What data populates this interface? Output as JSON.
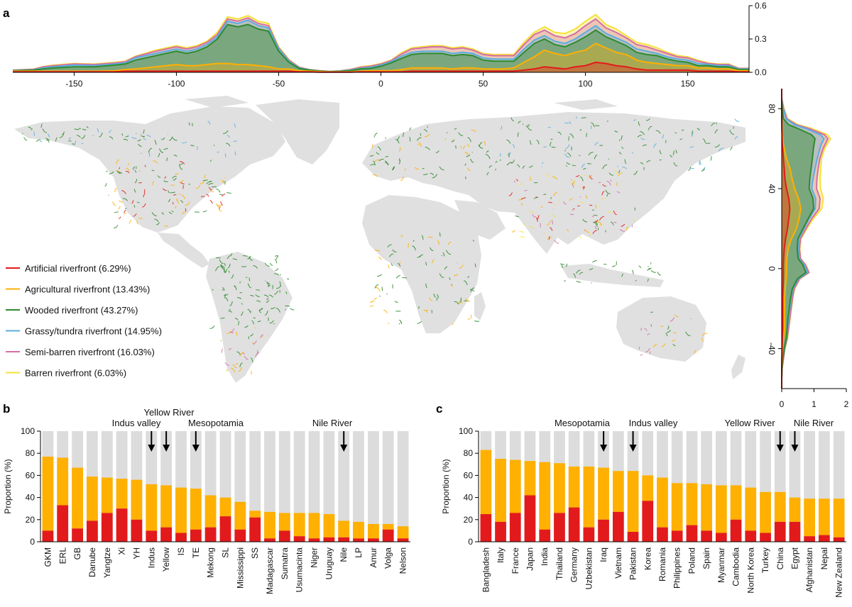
{
  "panel_labels": {
    "a": "a",
    "b": "b",
    "c": "c"
  },
  "colors": {
    "artificial": "#e31a1c",
    "agricultural": "#ffb000",
    "wooded": "#2e8b2e",
    "grassy": "#5aaee0",
    "semibarren": "#d46fa6",
    "barren": "#f5e13a",
    "remainder": "#dcdcdc",
    "land": "#e0e0e0"
  },
  "legend": [
    {
      "key": "artificial",
      "label": "Artificial riverfront (6.29%)"
    },
    {
      "key": "agricultural",
      "label": "Agricultural riverfront (13.43%)"
    },
    {
      "key": "wooded",
      "label": "Wooded riverfront (43.27%)"
    },
    {
      "key": "grassy",
      "label": "Grassy/tundra riverfront (14.95%)"
    },
    {
      "key": "semibarren",
      "label": "Semi-barren riverfront (16.03%)"
    },
    {
      "key": "barren",
      "label": "Barren riverfront (6.03%)"
    }
  ],
  "chart_data": [
    {
      "id": "a-longitude",
      "type": "area",
      "xlim": [
        -180,
        180
      ],
      "ylim": [
        0,
        0.6
      ],
      "x_ticks": [
        -150,
        -100,
        -50,
        0,
        50,
        100,
        150
      ],
      "y_ticks": [
        "0.0",
        "0.3",
        "0.6"
      ],
      "x": [
        -180,
        -170,
        -165,
        -160,
        -150,
        -140,
        -130,
        -125,
        -120,
        -110,
        -100,
        -95,
        -90,
        -85,
        -80,
        -75,
        -70,
        -65,
        -60,
        -55,
        -50,
        -45,
        -40,
        -35,
        -30,
        -25,
        -20,
        -15,
        -10,
        -5,
        0,
        5,
        10,
        15,
        20,
        25,
        30,
        35,
        40,
        45,
        50,
        55,
        60,
        65,
        70,
        75,
        80,
        85,
        90,
        95,
        100,
        105,
        110,
        115,
        120,
        125,
        130,
        135,
        140,
        145,
        150,
        155,
        160,
        165,
        170,
        175,
        180
      ],
      "series": [
        {
          "key": "artificial",
          "values": [
            0.005,
            0.005,
            0.005,
            0.005,
            0.005,
            0.005,
            0.005,
            0.01,
            0.01,
            0.01,
            0.01,
            0.01,
            0.01,
            0.01,
            0.01,
            0.01,
            0.01,
            0.01,
            0.01,
            0.01,
            0.01,
            0.01,
            0.005,
            0.005,
            0.002,
            0.002,
            0.002,
            0.002,
            0.005,
            0.005,
            0.005,
            0.005,
            0.005,
            0.01,
            0.01,
            0.01,
            0.01,
            0.01,
            0.01,
            0.01,
            0.01,
            0.01,
            0.01,
            0.01,
            0.02,
            0.03,
            0.05,
            0.04,
            0.03,
            0.05,
            0.06,
            0.09,
            0.08,
            0.06,
            0.05,
            0.03,
            0.02,
            0.02,
            0.02,
            0.02,
            0.02,
            0.01,
            0.01,
            0.01,
            0.01,
            0.005,
            0.005
          ]
        },
        {
          "key": "agricultural",
          "values": [
            0.005,
            0.005,
            0.005,
            0.005,
            0.005,
            0.005,
            0.01,
            0.015,
            0.02,
            0.04,
            0.06,
            0.05,
            0.05,
            0.06,
            0.07,
            0.07,
            0.06,
            0.06,
            0.05,
            0.04,
            0.02,
            0.02,
            0.01,
            0.005,
            0.005,
            0.002,
            0.002,
            0.003,
            0.005,
            0.01,
            0.01,
            0.01,
            0.02,
            0.03,
            0.03,
            0.03,
            0.03,
            0.02,
            0.03,
            0.03,
            0.02,
            0.02,
            0.02,
            0.03,
            0.07,
            0.11,
            0.15,
            0.13,
            0.12,
            0.13,
            0.14,
            0.17,
            0.14,
            0.12,
            0.11,
            0.08,
            0.07,
            0.06,
            0.05,
            0.04,
            0.04,
            0.03,
            0.03,
            0.02,
            0.02,
            0.01,
            0.01
          ]
        },
        {
          "key": "wooded",
          "values": [
            0.005,
            0.01,
            0.02,
            0.03,
            0.04,
            0.04,
            0.05,
            0.05,
            0.08,
            0.1,
            0.12,
            0.11,
            0.13,
            0.16,
            0.22,
            0.35,
            0.34,
            0.36,
            0.33,
            0.32,
            0.16,
            0.06,
            0.02,
            0.01,
            0.005,
            0.002,
            0.005,
            0.01,
            0.02,
            0.02,
            0.04,
            0.07,
            0.1,
            0.12,
            0.13,
            0.13,
            0.13,
            0.12,
            0.12,
            0.11,
            0.08,
            0.07,
            0.07,
            0.06,
            0.09,
            0.12,
            0.1,
            0.08,
            0.08,
            0.09,
            0.12,
            0.12,
            0.1,
            0.1,
            0.08,
            0.07,
            0.07,
            0.07,
            0.05,
            0.04,
            0.03,
            0.02,
            0.02,
            0.02,
            0.02,
            0.01,
            0.01
          ]
        },
        {
          "key": "grassy",
          "values": [
            0.002,
            0.002,
            0.01,
            0.01,
            0.015,
            0.01,
            0.01,
            0.01,
            0.02,
            0.02,
            0.02,
            0.02,
            0.02,
            0.02,
            0.02,
            0.03,
            0.03,
            0.04,
            0.03,
            0.03,
            0.02,
            0.01,
            0.005,
            0.002,
            0.001,
            0.001,
            0.002,
            0.005,
            0.005,
            0.01,
            0.01,
            0.01,
            0.02,
            0.02,
            0.02,
            0.02,
            0.02,
            0.02,
            0.02,
            0.02,
            0.02,
            0.02,
            0.02,
            0.02,
            0.03,
            0.03,
            0.03,
            0.03,
            0.03,
            0.03,
            0.04,
            0.04,
            0.03,
            0.03,
            0.03,
            0.03,
            0.03,
            0.02,
            0.02,
            0.02,
            0.02,
            0.02,
            0.01,
            0.01,
            0.01,
            0.005,
            0.005
          ]
        },
        {
          "key": "semibarren",
          "values": [
            0.002,
            0.005,
            0.01,
            0.01,
            0.01,
            0.01,
            0.01,
            0.01,
            0.01,
            0.02,
            0.02,
            0.02,
            0.02,
            0.02,
            0.02,
            0.02,
            0.02,
            0.02,
            0.02,
            0.02,
            0.01,
            0.01,
            0.005,
            0.002,
            0.001,
            0.001,
            0.002,
            0.005,
            0.01,
            0.01,
            0.01,
            0.01,
            0.02,
            0.03,
            0.03,
            0.04,
            0.04,
            0.04,
            0.04,
            0.03,
            0.03,
            0.03,
            0.03,
            0.03,
            0.04,
            0.05,
            0.05,
            0.05,
            0.05,
            0.05,
            0.06,
            0.06,
            0.05,
            0.05,
            0.04,
            0.04,
            0.04,
            0.03,
            0.03,
            0.02,
            0.02,
            0.02,
            0.01,
            0.01,
            0.01,
            0.005,
            0.005
          ]
        },
        {
          "key": "barren",
          "values": [
            0.001,
            0.002,
            0.003,
            0.005,
            0.005,
            0.005,
            0.005,
            0.005,
            0.005,
            0.01,
            0.01,
            0.01,
            0.01,
            0.01,
            0.02,
            0.02,
            0.02,
            0.02,
            0.02,
            0.02,
            0.01,
            0.005,
            0.002,
            0.001,
            0.001,
            0.001,
            0.001,
            0.002,
            0.005,
            0.005,
            0.005,
            0.005,
            0.01,
            0.01,
            0.01,
            0.01,
            0.01,
            0.01,
            0.01,
            0.01,
            0.01,
            0.01,
            0.01,
            0.01,
            0.02,
            0.02,
            0.03,
            0.03,
            0.04,
            0.04,
            0.04,
            0.04,
            0.03,
            0.03,
            0.02,
            0.02,
            0.02,
            0.02,
            0.01,
            0.01,
            0.01,
            0.01,
            0.005,
            0.005,
            0.005,
            0.002,
            0.002
          ]
        }
      ]
    },
    {
      "id": "a-latitude",
      "type": "area",
      "orientation": "vertical",
      "xlim": [
        0,
        2
      ],
      "ylim": [
        -60,
        90
      ],
      "x_ticks": [
        "0",
        "1",
        "2"
      ],
      "y_ticks": [
        "80",
        "40",
        "0",
        "-40"
      ],
      "y": [
        -60,
        -55,
        -50,
        -45,
        -40,
        -35,
        -30,
        -25,
        -20,
        -15,
        -10,
        -5,
        -2,
        0,
        2,
        5,
        10,
        15,
        20,
        25,
        30,
        35,
        40,
        45,
        50,
        55,
        60,
        62,
        65,
        67,
        70,
        72,
        75,
        80,
        85,
        90
      ],
      "series": [
        {
          "key": "artificial",
          "values": [
            0,
            0,
            0,
            0.005,
            0.01,
            0.02,
            0.03,
            0.03,
            0.03,
            0.03,
            0.04,
            0.05,
            0.05,
            0.05,
            0.05,
            0.06,
            0.08,
            0.12,
            0.18,
            0.22,
            0.25,
            0.22,
            0.15,
            0.1,
            0.08,
            0.05,
            0.03,
            0.02,
            0.01,
            0.01,
            0.005,
            0.005,
            0,
            0,
            0,
            0
          ]
        },
        {
          "key": "agricultural",
          "values": [
            0,
            0,
            0,
            0.005,
            0.01,
            0.04,
            0.06,
            0.06,
            0.06,
            0.06,
            0.07,
            0.09,
            0.1,
            0.1,
            0.1,
            0.1,
            0.12,
            0.18,
            0.28,
            0.32,
            0.34,
            0.3,
            0.25,
            0.22,
            0.18,
            0.1,
            0.05,
            0.03,
            0.02,
            0.01,
            0.005,
            0.005,
            0,
            0,
            0,
            0
          ]
        },
        {
          "key": "wooded",
          "values": [
            0,
            0,
            0.01,
            0.03,
            0.06,
            0.08,
            0.08,
            0.1,
            0.14,
            0.18,
            0.22,
            0.35,
            0.6,
            0.55,
            0.5,
            0.35,
            0.28,
            0.2,
            0.2,
            0.28,
            0.4,
            0.45,
            0.45,
            0.55,
            0.65,
            0.8,
            0.9,
            0.95,
            1.0,
            0.9,
            0.5,
            0.2,
            0.05,
            0.02,
            0,
            0
          ]
        },
        {
          "key": "grassy",
          "values": [
            0,
            0,
            0,
            0.005,
            0.005,
            0.01,
            0.01,
            0.02,
            0.02,
            0.02,
            0.02,
            0.03,
            0.05,
            0.05,
            0.04,
            0.03,
            0.03,
            0.03,
            0.03,
            0.03,
            0.05,
            0.08,
            0.08,
            0.1,
            0.12,
            0.15,
            0.2,
            0.22,
            0.28,
            0.28,
            0.25,
            0.18,
            0.08,
            0.03,
            0,
            0
          ]
        },
        {
          "key": "semibarren",
          "values": [
            0,
            0,
            0,
            0.01,
            0.01,
            0.02,
            0.03,
            0.04,
            0.04,
            0.04,
            0.04,
            0.04,
            0.04,
            0.04,
            0.04,
            0.04,
            0.04,
            0.05,
            0.06,
            0.08,
            0.12,
            0.14,
            0.15,
            0.12,
            0.1,
            0.08,
            0.1,
            0.12,
            0.12,
            0.12,
            0.1,
            0.06,
            0.03,
            0.01,
            0,
            0
          ]
        },
        {
          "key": "barren",
          "values": [
            0,
            0,
            0,
            0,
            0.005,
            0.01,
            0.01,
            0.01,
            0.01,
            0.01,
            0.01,
            0.01,
            0.01,
            0.01,
            0.01,
            0.01,
            0.01,
            0.02,
            0.03,
            0.05,
            0.08,
            0.1,
            0.12,
            0.1,
            0.08,
            0.05,
            0.05,
            0.06,
            0.08,
            0.1,
            0.08,
            0.05,
            0.02,
            0.01,
            0,
            0
          ]
        }
      ]
    },
    {
      "id": "b-basins",
      "type": "bar",
      "stacked": true,
      "ylabel": "Proportion (%)",
      "ylim": [
        0,
        100
      ],
      "y_ticks": [
        "0",
        "20",
        "40",
        "60",
        "80",
        "100"
      ],
      "categories": [
        "GKM",
        "ERL",
        "GB",
        "Danube",
        "Yangtze",
        "Xi",
        "YH",
        "Indus",
        "Yellow",
        "IS",
        "TE",
        "Mekong",
        "SL",
        "Mississippi",
        "SS",
        "Madagascar",
        "Sumatra",
        "Usumacinta",
        "Niger",
        "Uruguay",
        "Nile",
        "LP",
        "Amur",
        "Volga",
        "Nelson"
      ],
      "series": [
        {
          "key": "artificial",
          "values": [
            10,
            33,
            12,
            19,
            26,
            30,
            20,
            10,
            13,
            8,
            11,
            13,
            23,
            11,
            22,
            3,
            10,
            5,
            3,
            4,
            4,
            3,
            3,
            11,
            3
          ]
        },
        {
          "key": "agricultural",
          "values": [
            67,
            43,
            55,
            40,
            32,
            27,
            36,
            42,
            38,
            41,
            37,
            29,
            17,
            25,
            6,
            24,
            16,
            21,
            23,
            21,
            15,
            15,
            13,
            5,
            11
          ]
        }
      ],
      "annotations": [
        {
          "label": "Indus valley",
          "category": "Indus"
        },
        {
          "label": "Yellow River",
          "category": "Yellow"
        },
        {
          "label": "Mesopotamia",
          "category": "TE"
        },
        {
          "label": "Nile River",
          "category": "Nile"
        }
      ]
    },
    {
      "id": "c-countries",
      "type": "bar",
      "stacked": true,
      "ylabel": "Proportion (%)",
      "ylim": [
        0,
        100
      ],
      "y_ticks": [
        "0",
        "20",
        "40",
        "60",
        "80",
        "100"
      ],
      "categories": [
        "Bangladesh",
        "Italy",
        "France",
        "Japan",
        "India",
        "Thailand",
        "Germany",
        "Uzbekistan",
        "Iraq",
        "Vietnam",
        "Pakistan",
        "Korea",
        "Romania",
        "Philippines",
        "Poland",
        "Spain",
        "Myanmar",
        "Cambodia",
        "North Korea",
        "Turkey",
        "China",
        "Egypt",
        "Afghanistan",
        "Nepal",
        "New Zealand"
      ],
      "series": [
        {
          "key": "artificial",
          "values": [
            25,
            18,
            26,
            42,
            11,
            26,
            31,
            13,
            20,
            27,
            9,
            37,
            13,
            10,
            15,
            10,
            8,
            20,
            10,
            8,
            18,
            18,
            5,
            6,
            4
          ]
        },
        {
          "key": "agricultural",
          "values": [
            58,
            57,
            48,
            31,
            61,
            45,
            37,
            55,
            47,
            37,
            55,
            23,
            45,
            43,
            38,
            42,
            43,
            31,
            39,
            37,
            27,
            22,
            34,
            33,
            35
          ]
        }
      ],
      "annotations": [
        {
          "label": "Mesopotamia",
          "category": "Iraq"
        },
        {
          "label": "Indus valley",
          "category": "Pakistan"
        },
        {
          "label": "Yellow River",
          "category": "China"
        },
        {
          "label": "Nile River",
          "category": "Egypt"
        }
      ]
    }
  ]
}
